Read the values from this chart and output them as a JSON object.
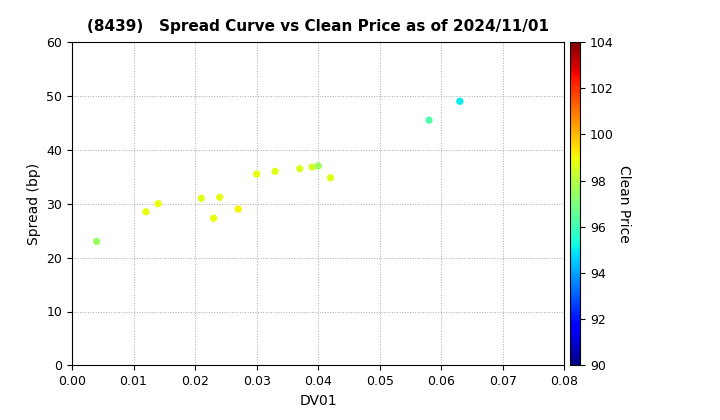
{
  "title": "(8439)   Spread Curve vs Clean Price as of 2024/11/01",
  "xlabel": "DV01",
  "ylabel": "Spread (bp)",
  "colorbar_label": "Clean Price",
  "xlim": [
    0.0,
    0.08
  ],
  "ylim": [
    0,
    60
  ],
  "xticks": [
    0.0,
    0.01,
    0.02,
    0.03,
    0.04,
    0.05,
    0.06,
    0.07,
    0.08
  ],
  "yticks": [
    0,
    10,
    20,
    30,
    40,
    50,
    60
  ],
  "color_min": 90,
  "color_max": 104,
  "colorbar_ticks": [
    90,
    92,
    94,
    96,
    98,
    100,
    102,
    104
  ],
  "points": [
    {
      "dv01": 0.004,
      "spread": 23.0,
      "price": 97.5
    },
    {
      "dv01": 0.012,
      "spread": 28.5,
      "price": 98.8
    },
    {
      "dv01": 0.014,
      "spread": 30.0,
      "price": 98.9
    },
    {
      "dv01": 0.021,
      "spread": 31.0,
      "price": 98.7
    },
    {
      "dv01": 0.023,
      "spread": 27.3,
      "price": 98.9
    },
    {
      "dv01": 0.024,
      "spread": 31.2,
      "price": 98.8
    },
    {
      "dv01": 0.027,
      "spread": 29.0,
      "price": 99.1
    },
    {
      "dv01": 0.03,
      "spread": 35.5,
      "price": 98.8
    },
    {
      "dv01": 0.033,
      "spread": 36.0,
      "price": 98.7
    },
    {
      "dv01": 0.037,
      "spread": 36.5,
      "price": 98.6
    },
    {
      "dv01": 0.039,
      "spread": 36.8,
      "price": 98.5
    },
    {
      "dv01": 0.04,
      "spread": 37.0,
      "price": 97.5
    },
    {
      "dv01": 0.042,
      "spread": 34.8,
      "price": 98.7
    },
    {
      "dv01": 0.058,
      "spread": 45.5,
      "price": 96.2
    },
    {
      "dv01": 0.063,
      "spread": 49.0,
      "price": 95.0
    }
  ],
  "marker_size": 18,
  "background_color": "#ffffff",
  "colormap": "jet",
  "title_fontsize": 11,
  "axis_fontsize": 10,
  "tick_fontsize": 9,
  "colorbar_fontsize": 9,
  "colorbar_label_fontsize": 10
}
